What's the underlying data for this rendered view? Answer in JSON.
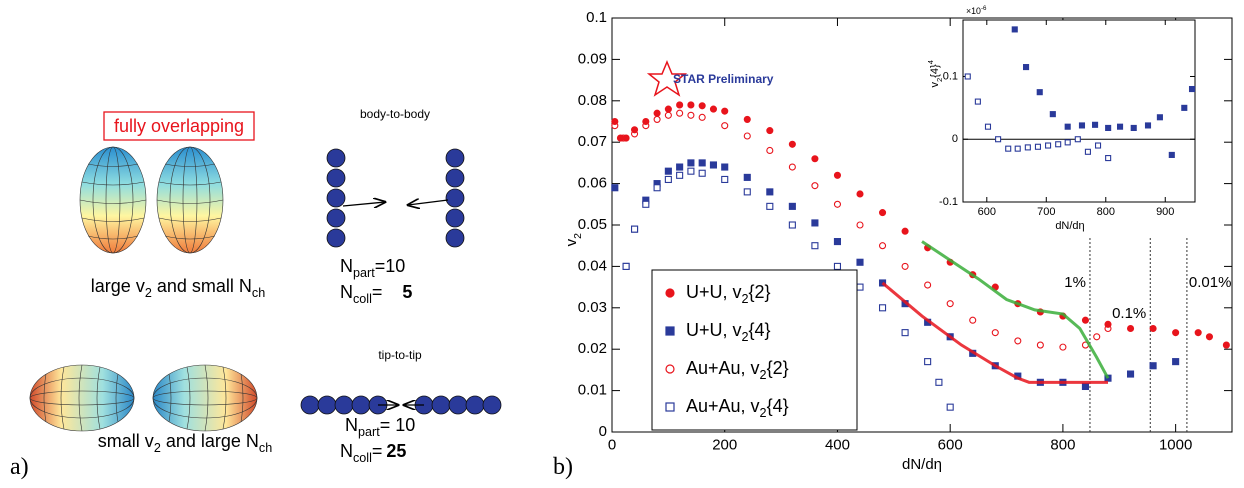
{
  "panel_a": {
    "tag": "a)",
    "box_label": "fully overlapping",
    "body_title": "body-to-body",
    "body_npart": "N_{part}=10",
    "body_ncoll": {
      "label": "N_{coll}=",
      "value": "5"
    },
    "body_caption": "large v_2 and small N_{ch}",
    "tip_title": "tip-to-tip",
    "tip_npart": "N_{part}= 10",
    "tip_ncoll": {
      "label": "N_{coll}=",
      "value": "25"
    },
    "tip_caption": "small v_2 and large N_{ch}"
  },
  "panel_b": {
    "tag": "b)"
  },
  "chart_data": [
    {
      "type": "scatter",
      "xlabel": "dN/dη",
      "ylabel": "v_2",
      "xlim": [
        0,
        1100
      ],
      "ylim": [
        0,
        0.1
      ],
      "xticks": [
        0,
        200,
        400,
        600,
        800,
        1000
      ],
      "yticks": [
        0,
        0.01,
        0.02,
        0.03,
        0.04,
        0.05,
        0.06,
        0.07,
        0.08,
        0.09,
        0.1
      ],
      "legend": "lower left",
      "annotation": "STAR Preliminary",
      "vlines": [
        {
          "x": 848,
          "label": "1%"
        },
        {
          "x": 955,
          "label": "0.1%"
        },
        {
          "x": 1020,
          "label": "0.01%"
        }
      ],
      "series": [
        {
          "name": "U+U, v_{2}{2}",
          "color": "#e8141c",
          "marker": "circle",
          "x": [
            5,
            15,
            25,
            40,
            60,
            80,
            100,
            120,
            140,
            160,
            180,
            200,
            240,
            280,
            320,
            360,
            400,
            440,
            480,
            520,
            560,
            600,
            640,
            680,
            720,
            760,
            800,
            840,
            880,
            920,
            960,
            1000,
            1040,
            1060,
            1090
          ],
          "values": [
            0.075,
            0.071,
            0.071,
            0.073,
            0.075,
            0.077,
            0.078,
            0.079,
            0.079,
            0.0788,
            0.078,
            0.0775,
            0.0755,
            0.0728,
            0.0695,
            0.066,
            0.062,
            0.0575,
            0.053,
            0.0485,
            0.0445,
            0.041,
            0.038,
            0.035,
            0.031,
            0.029,
            0.028,
            0.027,
            0.026,
            0.025,
            0.025,
            0.024,
            0.024,
            0.023,
            0.021
          ]
        },
        {
          "name": "U+U, v_{2}{4}",
          "color": "#2a3a9a",
          "marker": "square",
          "x": [
            5,
            25,
            40,
            60,
            80,
            100,
            120,
            140,
            160,
            180,
            200,
            240,
            280,
            320,
            360,
            400,
            440,
            480,
            520,
            560,
            600,
            640,
            680,
            720,
            760,
            800,
            840,
            880,
            920,
            960,
            1000
          ],
          "values": [
            0.059,
            0.04,
            0.049,
            0.056,
            0.06,
            0.063,
            0.064,
            0.065,
            0.065,
            0.0645,
            0.064,
            0.0615,
            0.058,
            0.0545,
            0.0505,
            0.046,
            0.041,
            0.036,
            0.031,
            0.0265,
            0.023,
            0.019,
            0.016,
            0.0135,
            0.012,
            0.012,
            0.011,
            0.013,
            0.014,
            0.016,
            0.017
          ]
        },
        {
          "name": "Au+Au, v_{2}{2}",
          "color": "#e8141c",
          "marker": "open-circle",
          "x": [
            5,
            20,
            40,
            60,
            80,
            100,
            120,
            140,
            160,
            200,
            240,
            280,
            320,
            360,
            400,
            440,
            480,
            520,
            560,
            600,
            640,
            680,
            720,
            760,
            800,
            840,
            860,
            880
          ],
          "values": [
            0.074,
            0.071,
            0.072,
            0.074,
            0.0755,
            0.0765,
            0.077,
            0.0765,
            0.076,
            0.074,
            0.0715,
            0.068,
            0.064,
            0.0595,
            0.055,
            0.05,
            0.045,
            0.04,
            0.0355,
            0.031,
            0.027,
            0.024,
            0.022,
            0.021,
            0.0205,
            0.021,
            0.023,
            0.025
          ]
        },
        {
          "name": "Au+Au, v_{2}{4}",
          "color": "#2a3a9a",
          "marker": "open-square",
          "x": [
            25,
            40,
            60,
            80,
            100,
            120,
            140,
            160,
            200,
            240,
            280,
            320,
            360,
            400,
            440,
            480,
            520,
            560,
            580,
            600
          ],
          "values": [
            0.04,
            0.049,
            0.055,
            0.059,
            0.061,
            0.062,
            0.063,
            0.0625,
            0.061,
            0.058,
            0.0545,
            0.05,
            0.045,
            0.04,
            0.035,
            0.03,
            0.024,
            0.017,
            0.012,
            0.006
          ]
        },
        {
          "color": "#3aae3a",
          "marker": "line",
          "x": [
            550,
            600,
            650,
            700,
            750,
            800,
            830,
            860,
            880
          ],
          "values": [
            0.046,
            0.0415,
            0.037,
            0.032,
            0.0295,
            0.0285,
            0.025,
            0.018,
            0.013
          ]
        },
        {
          "color": "#e8141c",
          "marker": "line",
          "x": [
            480,
            550,
            620,
            680,
            720,
            740,
            800,
            880
          ],
          "values": [
            0.036,
            0.028,
            0.021,
            0.016,
            0.013,
            0.012,
            0.012,
            0.012
          ]
        }
      ]
    },
    {
      "type": "scatter",
      "xlabel": "dN/dη",
      "ylabel": "v_{2}{4}^{4}",
      "multiplier": "×10^{-6}",
      "xlim": [
        560,
        950
      ],
      "ylim": [
        -0.1,
        0.19
      ],
      "xticks": [
        600,
        700,
        800,
        900
      ],
      "yticks": [
        -0.1,
        0,
        0.1
      ],
      "zero_line": true,
      "series": [
        {
          "color": "#2a3a9a",
          "marker": "square",
          "x": [
            647,
            666,
            689,
            711,
            736,
            760,
            782,
            804,
            824,
            847,
            871,
            891,
            911,
            932,
            945
          ],
          "values": [
            0.175,
            0.115,
            0.075,
            0.04,
            0.02,
            0.022,
            0.023,
            0.018,
            0.02,
            0.018,
            0.022,
            0.035,
            -0.025,
            0.05,
            0.08
          ]
        },
        {
          "color": "#2a3a9a",
          "marker": "open-square",
          "x": [
            568,
            585,
            602,
            619,
            636,
            652,
            669,
            686,
            703,
            720,
            736,
            753,
            770,
            787,
            804
          ],
          "values": [
            0.1,
            0.06,
            0.02,
            0,
            -0.015,
            -0.015,
            -0.013,
            -0.012,
            -0.01,
            -0.008,
            -0.005,
            0,
            -0.02,
            -0.01,
            -0.03
          ]
        }
      ]
    }
  ]
}
